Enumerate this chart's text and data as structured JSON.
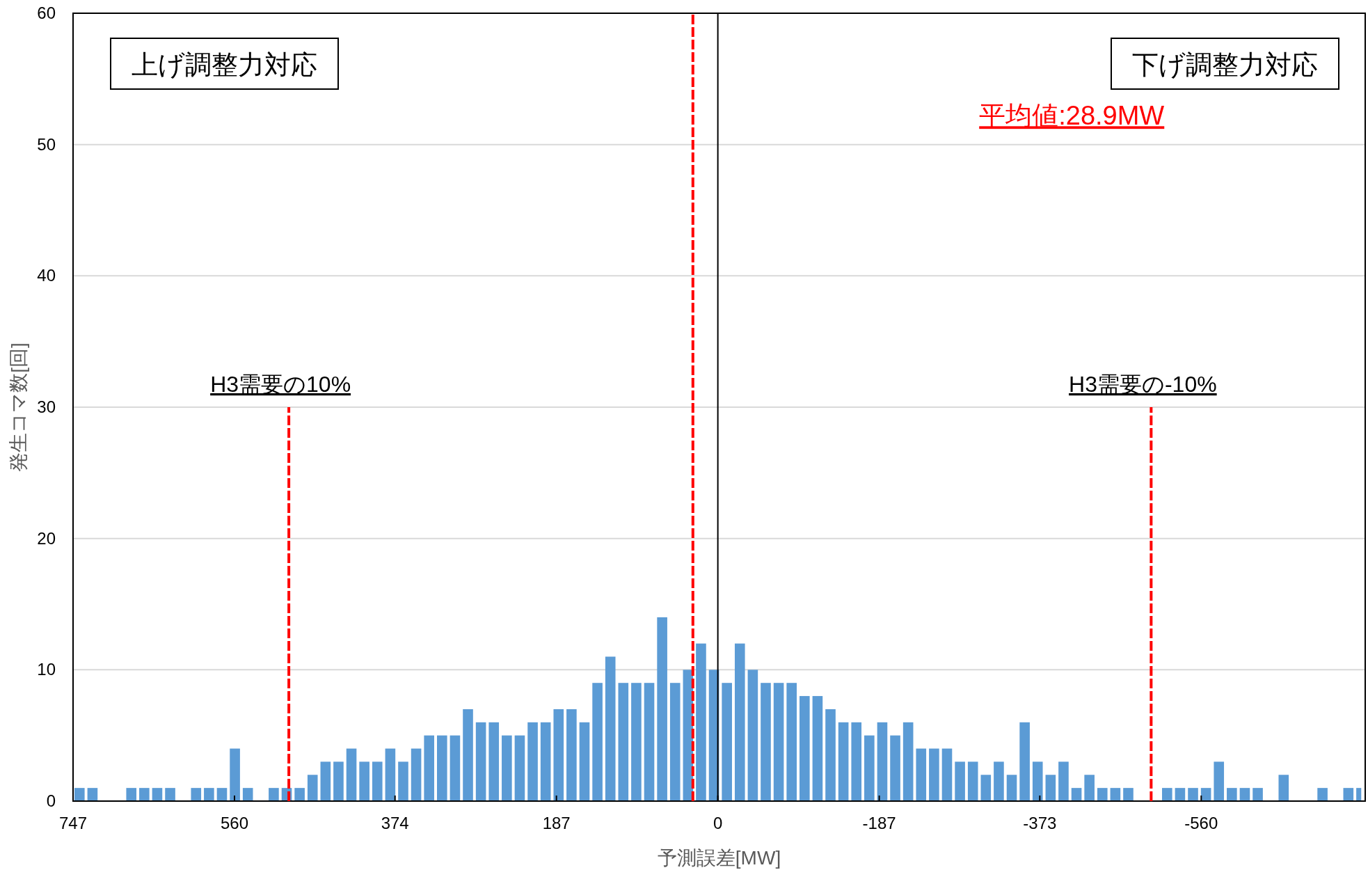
{
  "chart_data": {
    "type": "histogram",
    "xlabel": "予測誤差[MW]",
    "ylabel": "発生コマ数[回]",
    "bins": [
      747,
      732,
      717,
      687,
      672,
      657,
      642,
      627,
      612,
      597,
      582,
      567,
      552,
      537,
      522,
      507,
      492,
      477,
      462,
      447,
      432,
      417,
      402,
      387,
      372,
      357,
      342,
      327,
      312,
      297,
      282,
      267,
      252,
      237,
      222,
      207,
      192,
      177,
      162,
      147,
      132,
      117,
      102,
      87,
      72,
      57,
      42,
      27,
      12,
      -3,
      -18,
      -33,
      -48,
      -63,
      -78,
      -93,
      -108,
      -123,
      -138,
      -153,
      -168,
      -183,
      -198,
      -213,
      -228,
      -243,
      -258,
      -273,
      -288,
      -303,
      -318,
      -333,
      -348,
      -363,
      -378,
      -393,
      -408,
      -423,
      -438,
      -453,
      -468,
      -483,
      -513,
      -528,
      -543,
      -558,
      -573,
      -588,
      -603,
      -618,
      -633,
      -648,
      -663,
      -693,
      -708,
      -723,
      -738,
      -747
    ],
    "values": [
      1,
      1,
      0,
      1,
      1,
      1,
      1,
      0,
      1,
      1,
      1,
      4,
      1,
      0,
      1,
      1,
      1,
      2,
      3,
      3,
      4,
      3,
      3,
      4,
      3,
      4,
      5,
      5,
      5,
      7,
      6,
      6,
      5,
      5,
      6,
      6,
      7,
      7,
      6,
      9,
      11,
      9,
      9,
      9,
      14,
      9,
      10,
      12,
      10,
      9,
      12,
      10,
      9,
      9,
      9,
      8,
      8,
      7,
      6,
      6,
      5,
      6,
      5,
      6,
      4,
      4,
      4,
      3,
      3,
      2,
      3,
      2,
      6,
      3,
      2,
      3,
      1,
      2,
      1,
      1,
      1,
      0,
      1,
      1,
      1,
      1,
      3,
      1,
      1,
      1,
      0,
      2,
      0,
      1,
      0,
      1,
      1
    ],
    "color": "#5b9bd5",
    "xlim": [
      747,
      -750
    ],
    "ylim": [
      0,
      60
    ],
    "xticks": [
      747,
      560,
      374,
      187,
      0,
      -187,
      -373,
      -560
    ],
    "yticks": [
      0,
      10,
      20,
      30,
      40,
      50,
      60
    ],
    "grid": "y",
    "ref_lines": [
      {
        "axis": "x",
        "value": 28.9,
        "label": "平均値:28.9MW",
        "color": "#ff0000",
        "line_style": "dashed"
      },
      {
        "axis": "x",
        "value": 497,
        "label": "H3需要の10%",
        "color": "#ff0000",
        "line_style": "dashed"
      },
      {
        "axis": "x",
        "value": -502,
        "label": "H3需要の-10%",
        "color": "#ff0000",
        "line_style": "dashed"
      },
      {
        "axis": "x",
        "value": 0,
        "color": "#000000",
        "line_style": "solid"
      }
    ],
    "annotations": [
      "上げ調整力対応",
      "下げ調整力対応"
    ]
  }
}
